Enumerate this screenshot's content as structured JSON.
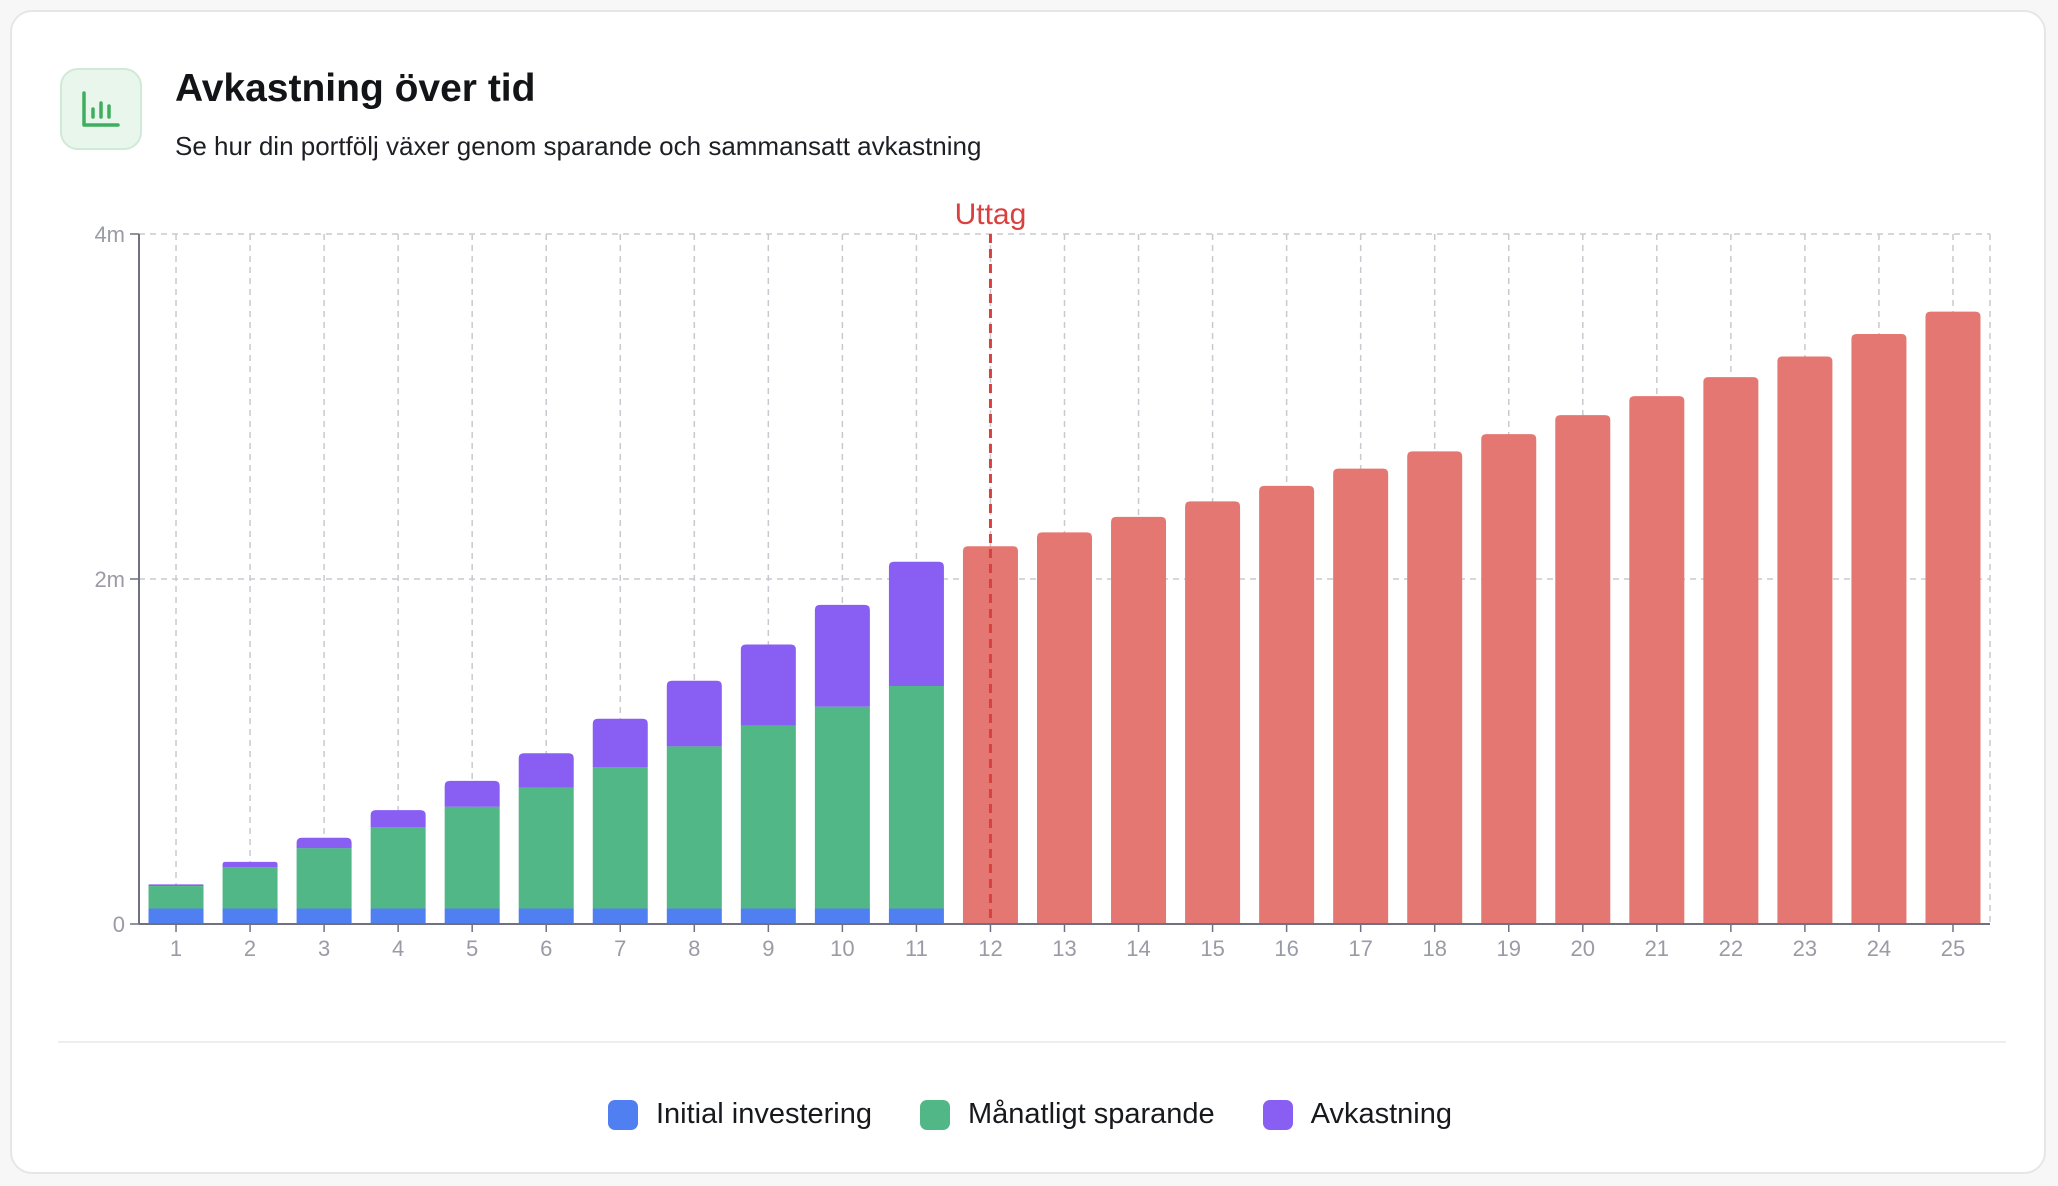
{
  "header": {
    "icon": "bar-chart-icon",
    "title": "Avkastning över tid",
    "subtitle": "Se hur din portfölj växer genom sparande och sammansatt avkastning"
  },
  "colors": {
    "initial": "#4f7ff0",
    "monthly": "#52b786",
    "returns": "#895ef2",
    "withdrawal": "#e57772",
    "uttag_line": "#d9413f",
    "icon_green": "#3fae5e"
  },
  "chart_data": {
    "type": "bar",
    "stacked": true,
    "categories": [
      "1",
      "2",
      "3",
      "4",
      "5",
      "6",
      "7",
      "8",
      "9",
      "10",
      "11",
      "12",
      "13",
      "14",
      "15",
      "16",
      "17",
      "18",
      "19",
      "20",
      "21",
      "22",
      "23",
      "24",
      "25"
    ],
    "y_ticks": [
      "0",
      "2m",
      "4m"
    ],
    "ylim": [
      0,
      4000000
    ],
    "grid": true,
    "legend_position": "bottom",
    "series": [
      {
        "name": "Initial investering",
        "values": [
          90000,
          90000,
          90000,
          90000,
          90000,
          90000,
          90000,
          90000,
          90000,
          90000,
          90000,
          null,
          null,
          null,
          null,
          null,
          null,
          null,
          null,
          null,
          null,
          null,
          null,
          null,
          null
        ]
      },
      {
        "name": "Månatligt sparande",
        "values": [
          130000,
          240000,
          350000,
          470000,
          590000,
          700000,
          820000,
          940000,
          1060000,
          1170000,
          1290000,
          null,
          null,
          null,
          null,
          null,
          null,
          null,
          null,
          null,
          null,
          null,
          null,
          null,
          null
        ]
      },
      {
        "name": "Avkastning",
        "values": [
          10000,
          30000,
          60000,
          100000,
          150000,
          200000,
          280000,
          380000,
          470000,
          590000,
          720000,
          null,
          null,
          null,
          null,
          null,
          null,
          null,
          null,
          null,
          null,
          null,
          null,
          null,
          null
        ]
      },
      {
        "name": "",
        "values": [
          null,
          null,
          null,
          null,
          null,
          null,
          null,
          null,
          null,
          null,
          null,
          2190000,
          2270000,
          2360000,
          2450000,
          2540000,
          2640000,
          2740000,
          2840000,
          2950000,
          3060000,
          3170000,
          3290000,
          3420000,
          3550000
        ]
      }
    ],
    "annotation": {
      "label": "Uttag",
      "at_category": "12"
    }
  },
  "legend": [
    {
      "label": "Initial investering",
      "color": "#4f7ff0"
    },
    {
      "label": "Månatligt sparande",
      "color": "#52b786"
    },
    {
      "label": "Avkastning",
      "color": "#895ef2"
    }
  ]
}
